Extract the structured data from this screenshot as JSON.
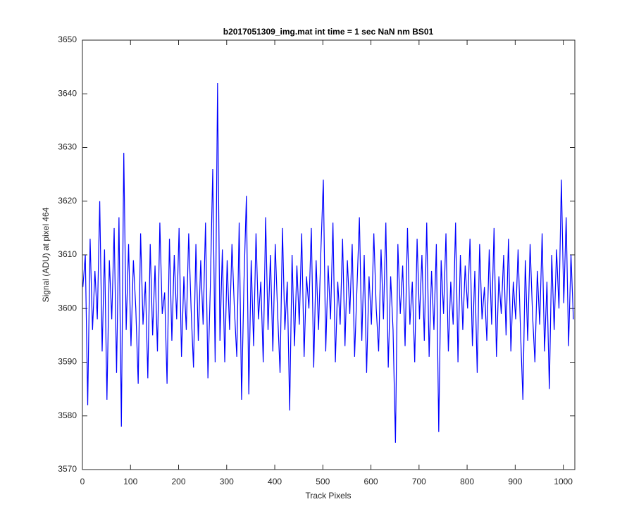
{
  "chart_data": {
    "type": "line",
    "title": "b2017051309_img.mat int time = 1 sec  NaN nm BS01",
    "x_label": "Track Pixels",
    "y_label": "Signal (ADU) at pixel 464",
    "color": "#0000ff",
    "xlim": [
      0,
      1024
    ],
    "ylim": [
      3570,
      3650
    ],
    "xticks": [
      0,
      100,
      200,
      300,
      400,
      500,
      600,
      700,
      800,
      900,
      1000
    ],
    "yticks": [
      3570,
      3580,
      3590,
      3600,
      3610,
      3620,
      3630,
      3640,
      3650
    ],
    "x": [
      1,
      6,
      11,
      16,
      21,
      26,
      31,
      36,
      41,
      46,
      51,
      56,
      61,
      66,
      71,
      76,
      81,
      86,
      91,
      96,
      101,
      106,
      111,
      116,
      121,
      126,
      131,
      136,
      141,
      146,
      151,
      156,
      161,
      166,
      171,
      176,
      181,
      186,
      191,
      196,
      201,
      206,
      211,
      216,
      221,
      226,
      231,
      236,
      241,
      246,
      251,
      256,
      261,
      266,
      271,
      276,
      281,
      286,
      291,
      296,
      301,
      306,
      311,
      316,
      321,
      326,
      331,
      336,
      341,
      346,
      351,
      356,
      361,
      366,
      371,
      376,
      381,
      386,
      391,
      396,
      401,
      406,
      411,
      416,
      421,
      426,
      431,
      436,
      441,
      446,
      451,
      456,
      461,
      466,
      471,
      476,
      481,
      486,
      491,
      496,
      501,
      506,
      511,
      516,
      521,
      526,
      531,
      536,
      541,
      546,
      551,
      556,
      561,
      566,
      571,
      576,
      581,
      586,
      591,
      596,
      601,
      606,
      611,
      616,
      621,
      626,
      631,
      636,
      641,
      646,
      651,
      656,
      661,
      666,
      671,
      676,
      681,
      686,
      691,
      696,
      701,
      706,
      711,
      716,
      721,
      726,
      731,
      736,
      741,
      746,
      751,
      756,
      761,
      766,
      771,
      776,
      781,
      786,
      791,
      796,
      801,
      806,
      811,
      816,
      821,
      826,
      831,
      836,
      841,
      846,
      851,
      856,
      861,
      866,
      871,
      876,
      881,
      886,
      891,
      896,
      901,
      906,
      911,
      916,
      921,
      926,
      931,
      936,
      941,
      946,
      951,
      956,
      961,
      966,
      971,
      976,
      981,
      986,
      991,
      996,
      1001,
      1006,
      1011,
      1016,
      1021
    ],
    "values": [
      3604,
      3610,
      3582,
      3613,
      3596,
      3607,
      3598,
      3620,
      3592,
      3611,
      3583,
      3609,
      3598,
      3615,
      3588,
      3617,
      3578,
      3629,
      3596,
      3612,
      3593,
      3609,
      3600,
      3586,
      3614,
      3597,
      3605,
      3587,
      3612,
      3595,
      3608,
      3592,
      3616,
      3599,
      3603,
      3586,
      3613,
      3594,
      3610,
      3598,
      3615,
      3591,
      3606,
      3596,
      3614,
      3600,
      3589,
      3612,
      3594,
      3609,
      3597,
      3616,
      3587,
      3604,
      3626,
      3590,
      3642,
      3594,
      3611,
      3590,
      3609,
      3596,
      3612,
      3600,
      3591,
      3616,
      3583,
      3605,
      3621,
      3584,
      3609,
      3593,
      3614,
      3598,
      3605,
      3590,
      3617,
      3596,
      3610,
      3592,
      3612,
      3599,
      3588,
      3615,
      3596,
      3605,
      3581,
      3610,
      3593,
      3608,
      3597,
      3614,
      3591,
      3606,
      3600,
      3615,
      3589,
      3609,
      3596,
      3611,
      3624,
      3592,
      3608,
      3598,
      3616,
      3590,
      3605,
      3597,
      3613,
      3593,
      3609,
      3599,
      3612,
      3591,
      3604,
      3617,
      3594,
      3610,
      3588,
      3606,
      3597,
      3614,
      3600,
      3592,
      3611,
      3598,
      3616,
      3589,
      3606,
      3596,
      3575,
      3612,
      3599,
      3608,
      3593,
      3615,
      3597,
      3605,
      3590,
      3613,
      3598,
      3610,
      3594,
      3616,
      3591,
      3607,
      3596,
      3612,
      3577,
      3609,
      3599,
      3614,
      3592,
      3605,
      3597,
      3616,
      3590,
      3610,
      3596,
      3608,
      3600,
      3613,
      3593,
      3607,
      3588,
      3612,
      3598,
      3604,
      3594,
      3611,
      3597,
      3615,
      3591,
      3606,
      3599,
      3610,
      3595,
      3613,
      3592,
      3605,
      3598,
      3611,
      3596,
      3583,
      3609,
      3594,
      3612,
      3599,
      3590,
      3607,
      3597,
      3614,
      3592,
      3605,
      3585,
      3610,
      3596,
      3611,
      3600,
      3624,
      3601,
      3617,
      3593,
      3610,
      3598
    ]
  }
}
